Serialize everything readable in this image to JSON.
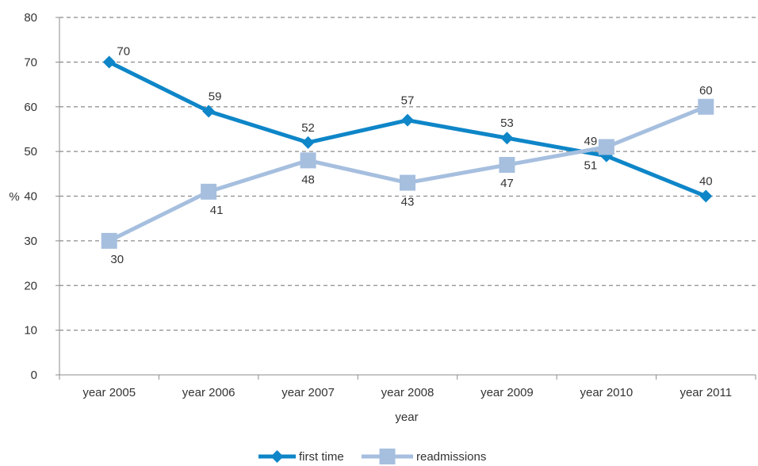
{
  "chart_data": {
    "type": "line",
    "categories": [
      "year 2005",
      "year 2006",
      "year 2007",
      "year 2008",
      "year 2009",
      "year 2010",
      "year 2011"
    ],
    "series": [
      {
        "name": "first time",
        "values": [
          70,
          59,
          52,
          57,
          53,
          49,
          40
        ],
        "color": "#0e86c8",
        "marker": "diamond"
      },
      {
        "name": "readmissions",
        "values": [
          30,
          41,
          48,
          43,
          47,
          51,
          60
        ],
        "color": "#a6bfdf",
        "marker": "square"
      }
    ],
    "xlabel": "year",
    "ylabel": "%",
    "ylim": [
      0,
      80
    ],
    "yticks": [
      0,
      10,
      20,
      30,
      40,
      50,
      60,
      70,
      80
    ],
    "grid": true,
    "legend": "bottom-center"
  }
}
